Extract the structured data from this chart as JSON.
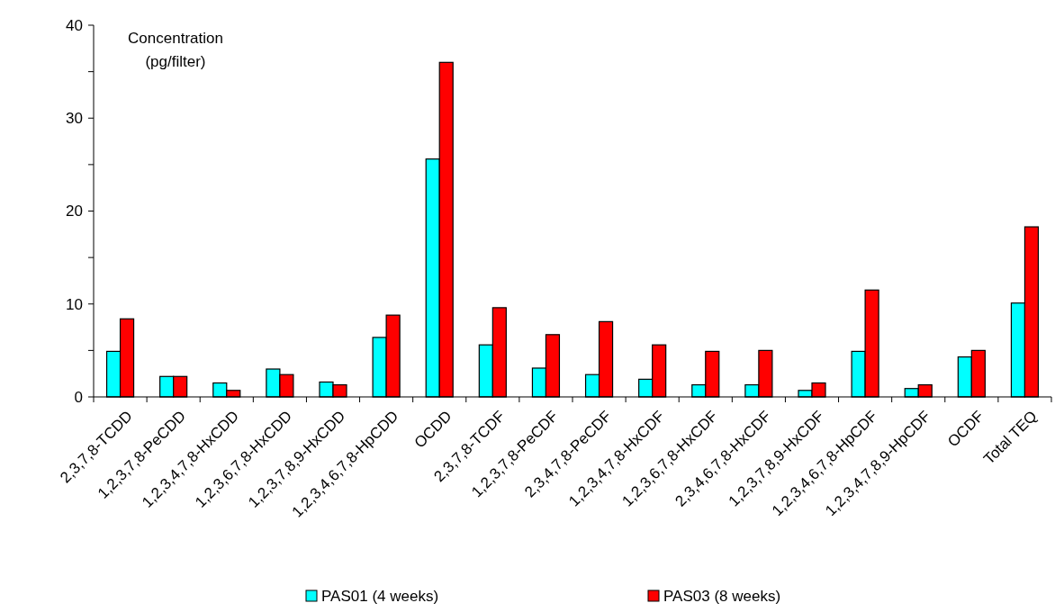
{
  "chart_data": {
    "type": "bar",
    "ylabel": "Concentration (pg/filter)",
    "categories": [
      "2,3,7,8-TCDD",
      "1,2,3,7,8-PeCDD",
      "1,2,3,4,7,8-HxCDD",
      "1,2,3,6,7,8-HxCDD",
      "1,2,3,7,8,9-HxCDD",
      "1,2,3,4,6,7,8-HpCDD",
      "OCDD",
      "2,3,7,8-TCDF",
      "1,2,3,7,8-PeCDF",
      "2,3,4,7,8-PeCDF",
      "1,2,3,4,7,8-HxCDF",
      "1,2,3,6,7,8-HxCDF",
      "2,3,4,6,7,8-HxCDF",
      "1,2,3,7,8,9-HxCDF",
      "1,2,3,4,6,7,8-HpCDF",
      "1,2,3,4,7,8,9-HpCDF",
      "OCDF",
      "Total TEQ"
    ],
    "series": [
      {
        "name": "PAS01 (4 weeks)",
        "color": "#00ffff",
        "values": [
          4.9,
          2.2,
          1.5,
          3.0,
          1.6,
          6.4,
          25.6,
          5.6,
          3.1,
          2.4,
          1.9,
          1.3,
          1.3,
          0.7,
          4.9,
          0.9,
          4.3,
          10.1
        ]
      },
      {
        "name": "PAS03 (8 weeks)",
        "color": "#ff0000",
        "values": [
          8.4,
          2.2,
          0.7,
          2.4,
          1.3,
          8.8,
          36.0,
          9.6,
          6.7,
          8.1,
          5.6,
          4.9,
          5.0,
          1.5,
          11.5,
          1.3,
          5.0,
          18.3
        ]
      }
    ],
    "ylim": [
      0,
      40
    ],
    "yticks": [
      0,
      {
        "value": 5,
        "label": null
      },
      10,
      {
        "value": 15,
        "label": null
      },
      20,
      {
        "value": 25,
        "label": null
      },
      30,
      {
        "value": 35,
        "label": null
      },
      40
    ],
    "grid": false,
    "legend": "bottom"
  }
}
